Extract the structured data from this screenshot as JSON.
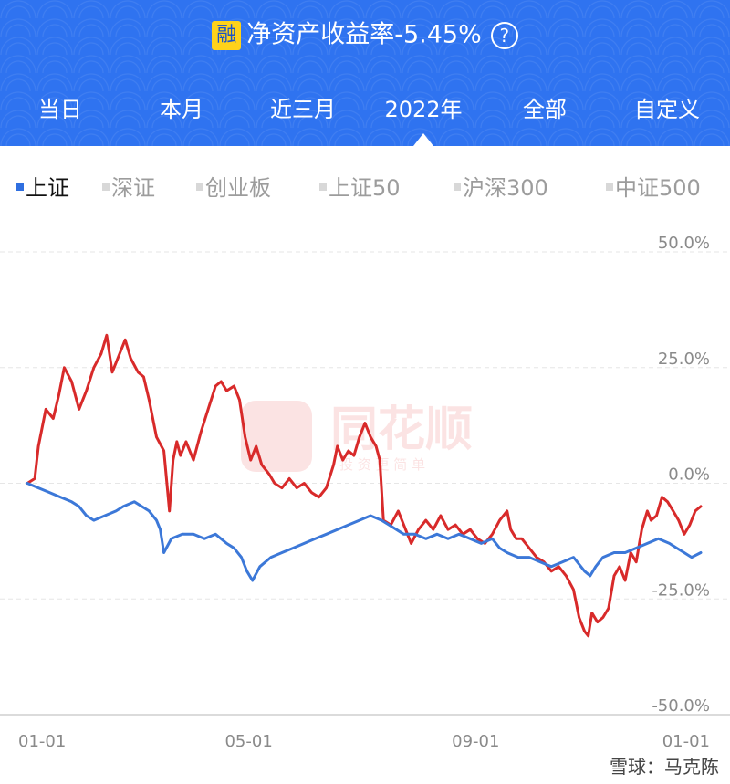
{
  "header": {
    "badge": "融",
    "title": "净资产收益率-5.45%",
    "help_glyph": "?"
  },
  "tabs": [
    {
      "label": "当日"
    },
    {
      "label": "本月"
    },
    {
      "label": "近三月"
    },
    {
      "label": "2022年",
      "selected": true
    },
    {
      "label": "全部"
    },
    {
      "label": "自定义"
    }
  ],
  "legend": [
    {
      "label": "上证",
      "active": true,
      "color": "#2f6fe0"
    },
    {
      "label": "深证",
      "active": false
    },
    {
      "label": "创业板",
      "active": false
    },
    {
      "label": "上证50",
      "active": false
    },
    {
      "label": "沪深300",
      "active": false
    },
    {
      "label": "中证500",
      "active": false
    }
  ],
  "chart_data": {
    "type": "line",
    "y_ticks": [
      "50.0%",
      "25.0%",
      "0.0%",
      "-25.0%",
      "-50.0%"
    ],
    "y_tick_values": [
      50,
      25,
      0,
      -25,
      -50
    ],
    "ylim": [
      -50,
      50
    ],
    "x_ticks": [
      "01-01",
      "05-01",
      "09-01",
      "01-01"
    ],
    "x_tick_days": [
      0,
      120,
      243,
      365
    ],
    "xlim": [
      0,
      365
    ],
    "grid": true,
    "series": [
      {
        "color": "#d82a2a",
        "points": [
          [
            0,
            0
          ],
          [
            4,
            1
          ],
          [
            6,
            8
          ],
          [
            10,
            16
          ],
          [
            14,
            14
          ],
          [
            17,
            19
          ],
          [
            20,
            25
          ],
          [
            24,
            22
          ],
          [
            28,
            16
          ],
          [
            32,
            20
          ],
          [
            36,
            25
          ],
          [
            40,
            28
          ],
          [
            43,
            32
          ],
          [
            46,
            24
          ],
          [
            50,
            28
          ],
          [
            53,
            31
          ],
          [
            56,
            27
          ],
          [
            60,
            24
          ],
          [
            63,
            23
          ],
          [
            66,
            18
          ],
          [
            70,
            10
          ],
          [
            74,
            7
          ],
          [
            77,
            -6
          ],
          [
            79,
            5
          ],
          [
            81,
            9
          ],
          [
            83,
            6
          ],
          [
            86,
            9
          ],
          [
            90,
            5
          ],
          [
            94,
            11
          ],
          [
            98,
            16
          ],
          [
            102,
            21
          ],
          [
            105,
            22
          ],
          [
            108,
            20
          ],
          [
            112,
            21
          ],
          [
            115,
            18
          ],
          [
            118,
            10
          ],
          [
            121,
            5
          ],
          [
            124,
            8
          ],
          [
            127,
            4
          ],
          [
            131,
            2
          ],
          [
            134,
            0
          ],
          [
            138,
            -1
          ],
          [
            142,
            1
          ],
          [
            146,
            -1
          ],
          [
            150,
            0
          ],
          [
            154,
            -2
          ],
          [
            158,
            -3
          ],
          [
            162,
            -1
          ],
          [
            166,
            4
          ],
          [
            168,
            8
          ],
          [
            171,
            5
          ],
          [
            174,
            7
          ],
          [
            177,
            6
          ],
          [
            180,
            10
          ],
          [
            183,
            13
          ],
          [
            186,
            10
          ],
          [
            189,
            8
          ],
          [
            191,
            5
          ],
          [
            193,
            -8
          ],
          [
            197,
            -9
          ],
          [
            201,
            -6
          ],
          [
            205,
            -10
          ],
          [
            208,
            -13
          ],
          [
            212,
            -10
          ],
          [
            216,
            -8
          ],
          [
            220,
            -10
          ],
          [
            224,
            -7
          ],
          [
            228,
            -10
          ],
          [
            232,
            -9
          ],
          [
            236,
            -11
          ],
          [
            240,
            -10
          ],
          [
            244,
            -12
          ],
          [
            248,
            -13
          ],
          [
            252,
            -11
          ],
          [
            256,
            -8
          ],
          [
            260,
            -6
          ],
          [
            262,
            -10
          ],
          [
            265,
            -12
          ],
          [
            268,
            -12
          ],
          [
            272,
            -14
          ],
          [
            276,
            -16
          ],
          [
            280,
            -17
          ],
          [
            284,
            -19
          ],
          [
            288,
            -18
          ],
          [
            292,
            -20
          ],
          [
            296,
            -23
          ],
          [
            299,
            -29
          ],
          [
            302,
            -32
          ],
          [
            304,
            -33
          ],
          [
            306,
            -28
          ],
          [
            309,
            -30
          ],
          [
            312,
            -29
          ],
          [
            315,
            -27
          ],
          [
            318,
            -20
          ],
          [
            321,
            -18
          ],
          [
            324,
            -21
          ],
          [
            327,
            -15
          ],
          [
            330,
            -17
          ],
          [
            333,
            -10
          ],
          [
            336,
            -6
          ],
          [
            338,
            -8
          ],
          [
            341,
            -7
          ],
          [
            344,
            -3
          ],
          [
            347,
            -4
          ],
          [
            350,
            -6
          ],
          [
            353,
            -8
          ],
          [
            356,
            -11
          ],
          [
            359,
            -9
          ],
          [
            362,
            -6
          ],
          [
            365,
            -5
          ]
        ]
      },
      {
        "name": "上证",
        "color": "#3c78d8",
        "points": [
          [
            0,
            0
          ],
          [
            6,
            -1
          ],
          [
            12,
            -2
          ],
          [
            18,
            -3
          ],
          [
            24,
            -4
          ],
          [
            28,
            -5
          ],
          [
            32,
            -7
          ],
          [
            36,
            -8
          ],
          [
            42,
            -7
          ],
          [
            48,
            -6
          ],
          [
            52,
            -5
          ],
          [
            58,
            -4
          ],
          [
            62,
            -5
          ],
          [
            66,
            -6
          ],
          [
            70,
            -8
          ],
          [
            72,
            -10
          ],
          [
            74,
            -15
          ],
          [
            78,
            -12
          ],
          [
            84,
            -11
          ],
          [
            90,
            -11
          ],
          [
            96,
            -12
          ],
          [
            102,
            -11
          ],
          [
            108,
            -13
          ],
          [
            112,
            -14
          ],
          [
            116,
            -16
          ],
          [
            119,
            -19
          ],
          [
            122,
            -21
          ],
          [
            126,
            -18
          ],
          [
            132,
            -16
          ],
          [
            138,
            -15
          ],
          [
            144,
            -14
          ],
          [
            150,
            -13
          ],
          [
            156,
            -12
          ],
          [
            162,
            -11
          ],
          [
            168,
            -10
          ],
          [
            174,
            -9
          ],
          [
            180,
            -8
          ],
          [
            186,
            -7
          ],
          [
            192,
            -8
          ],
          [
            196,
            -9
          ],
          [
            200,
            -10
          ],
          [
            204,
            -11
          ],
          [
            210,
            -11
          ],
          [
            216,
            -12
          ],
          [
            222,
            -11
          ],
          [
            228,
            -12
          ],
          [
            234,
            -11
          ],
          [
            240,
            -12
          ],
          [
            246,
            -13
          ],
          [
            252,
            -12
          ],
          [
            256,
            -14
          ],
          [
            260,
            -15
          ],
          [
            266,
            -16
          ],
          [
            272,
            -16
          ],
          [
            278,
            -17
          ],
          [
            284,
            -18
          ],
          [
            290,
            -17
          ],
          [
            296,
            -16
          ],
          [
            302,
            -19
          ],
          [
            305,
            -20
          ],
          [
            308,
            -18
          ],
          [
            312,
            -16
          ],
          [
            318,
            -15
          ],
          [
            324,
            -15
          ],
          [
            330,
            -14
          ],
          [
            336,
            -13
          ],
          [
            342,
            -12
          ],
          [
            348,
            -13
          ],
          [
            352,
            -14
          ],
          [
            356,
            -15
          ],
          [
            360,
            -16
          ],
          [
            365,
            -15
          ]
        ]
      }
    ]
  },
  "watermark": {
    "brand": "同花顺",
    "tagline": "投 资 更 简 单",
    "credit": "雪球：马克陈"
  }
}
